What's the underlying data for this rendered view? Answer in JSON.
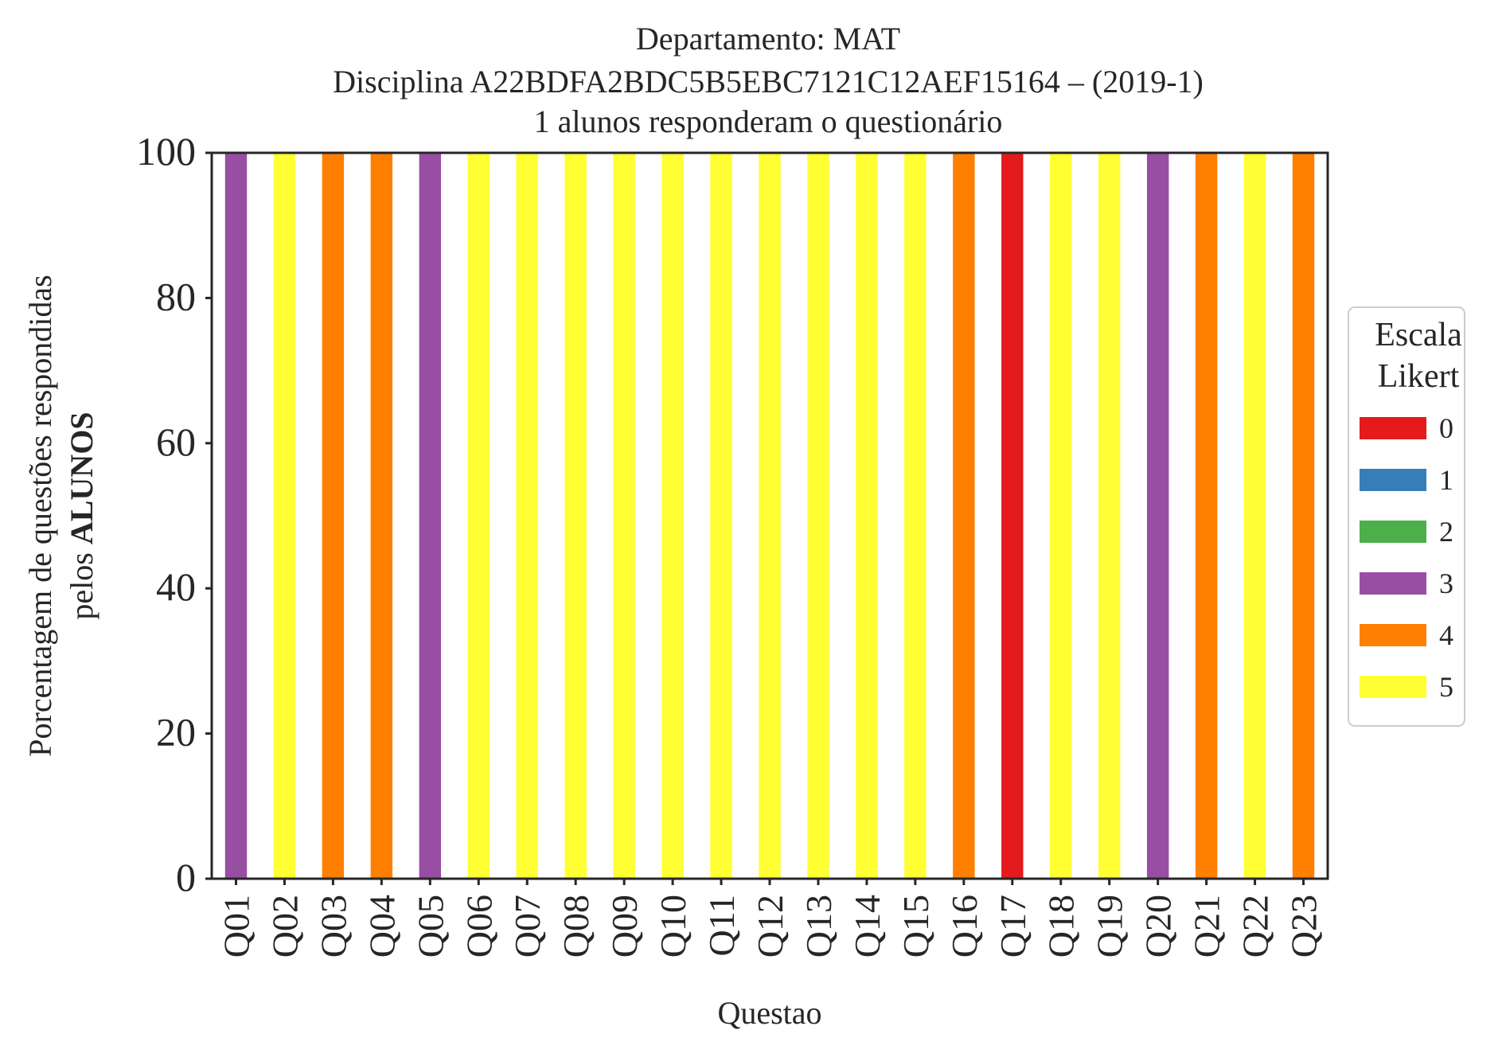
{
  "chart_data": {
    "type": "bar",
    "stacked": true,
    "title_lines": [
      "Departamento: MAT",
      "Disciplina A22BDFA2BDC5B5EBC7121C12AEF15164 – (2019-1)",
      "1 alunos responderam o questionário"
    ],
    "xlabel": "Questao",
    "ylabel_line1": "Porcentagem de questões respondidas",
    "ylabel_line2_prefix": "pelos ",
    "ylabel_line2_bold": "ALUNOS",
    "ylim": [
      0,
      100
    ],
    "yticks": [
      "0",
      "20",
      "40",
      "60",
      "80",
      "100"
    ],
    "grid": false,
    "categories": [
      "Q01",
      "Q02",
      "Q03",
      "Q04",
      "Q05",
      "Q06",
      "Q07",
      "Q08",
      "Q09",
      "Q10",
      "Q11",
      "Q12",
      "Q13",
      "Q14",
      "Q15",
      "Q16",
      "Q17",
      "Q18",
      "Q19",
      "Q20",
      "Q21",
      "Q22",
      "Q23"
    ],
    "legend": {
      "title_line1": "Escala",
      "title_line2": "Likert",
      "placement": "center-right outside",
      "entries": [
        "0",
        "1",
        "2",
        "3",
        "4",
        "5"
      ]
    },
    "series": [
      {
        "name": "0",
        "color": "#e41a1c",
        "values": [
          0,
          0,
          0,
          0,
          0,
          0,
          0,
          0,
          0,
          0,
          0,
          0,
          0,
          0,
          0,
          0,
          100,
          0,
          0,
          0,
          0,
          0,
          0
        ]
      },
      {
        "name": "1",
        "color": "#377eb8",
        "values": [
          0,
          0,
          0,
          0,
          0,
          0,
          0,
          0,
          0,
          0,
          0,
          0,
          0,
          0,
          0,
          0,
          0,
          0,
          0,
          0,
          0,
          0,
          0
        ]
      },
      {
        "name": "2",
        "color": "#4daf4a",
        "values": [
          0,
          0,
          0,
          0,
          0,
          0,
          0,
          0,
          0,
          0,
          0,
          0,
          0,
          0,
          0,
          0,
          0,
          0,
          0,
          0,
          0,
          0,
          0
        ]
      },
      {
        "name": "3",
        "color": "#984ea3",
        "values": [
          100,
          0,
          0,
          0,
          100,
          0,
          0,
          0,
          0,
          0,
          0,
          0,
          0,
          0,
          0,
          0,
          0,
          0,
          0,
          100,
          0,
          0,
          0
        ]
      },
      {
        "name": "4",
        "color": "#ff7f00",
        "values": [
          0,
          0,
          100,
          100,
          0,
          0,
          0,
          0,
          0,
          0,
          0,
          0,
          0,
          0,
          0,
          100,
          0,
          0,
          0,
          0,
          100,
          0,
          100
        ]
      },
      {
        "name": "5",
        "color": "#ffff33",
        "values": [
          0,
          100,
          0,
          0,
          0,
          100,
          100,
          100,
          100,
          100,
          100,
          100,
          100,
          100,
          100,
          0,
          0,
          100,
          100,
          0,
          0,
          100,
          0
        ]
      }
    ]
  }
}
